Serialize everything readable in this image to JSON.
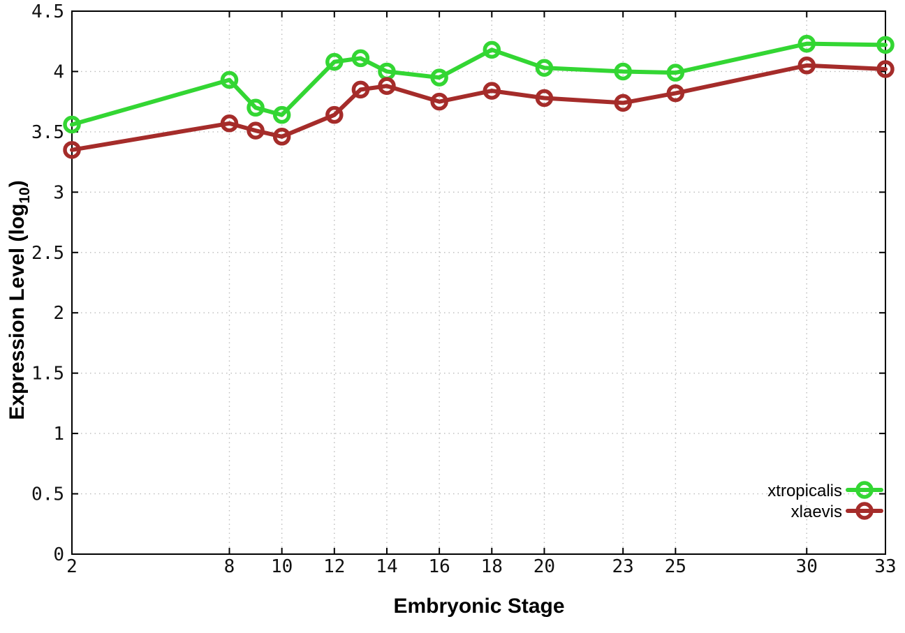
{
  "figure": {
    "background": "#ffffff",
    "border_color": "#000000",
    "grid_color": "#bbbbbb"
  },
  "chart_data": {
    "type": "line",
    "title": "",
    "xlabel": "Embryonic Stage",
    "ylabel": "Expression Level (log10)",
    "ylabel_parts": {
      "main": "Expression Level (log",
      "sub": "10",
      "end": ")"
    },
    "xlim": [
      2,
      33
    ],
    "ylim": [
      0,
      4.5
    ],
    "grid": true,
    "legend_position": "bottom-right",
    "x_ticks": [
      2,
      8,
      10,
      12,
      14,
      16,
      18,
      20,
      23,
      25,
      30,
      33
    ],
    "x_tick_labels": [
      "2",
      "8",
      "10",
      "12",
      "14",
      "16",
      "18",
      "20",
      "23",
      "25",
      "30",
      "33"
    ],
    "y_ticks": [
      0,
      0.5,
      1,
      1.5,
      2,
      2.5,
      3,
      3.5,
      4,
      4.5
    ],
    "y_tick_labels": [
      "0",
      "0.5",
      "1",
      "1.5",
      "2",
      "2.5",
      "3",
      "3.5",
      "4",
      "4.5"
    ],
    "x": [
      2,
      8,
      9,
      10,
      12,
      13,
      14,
      16,
      18,
      20,
      23,
      25,
      30,
      33
    ],
    "series": [
      {
        "name": "xtropicalis",
        "color": "#33d633",
        "marker": "open-circle",
        "values": [
          3.56,
          3.93,
          3.7,
          3.64,
          4.08,
          4.11,
          4.0,
          3.95,
          4.18,
          4.03,
          4.0,
          3.99,
          4.23,
          4.22
        ]
      },
      {
        "name": "xlaevis",
        "color": "#a52c2a",
        "marker": "open-circle",
        "values": [
          3.35,
          3.57,
          3.51,
          3.46,
          3.64,
          3.85,
          3.88,
          3.75,
          3.84,
          3.78,
          3.74,
          3.82,
          4.05,
          4.02
        ]
      }
    ]
  }
}
